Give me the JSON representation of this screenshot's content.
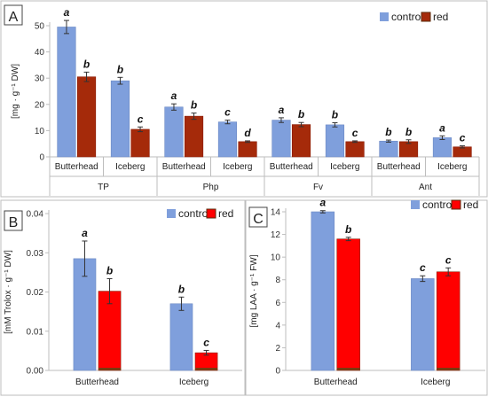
{
  "colors": {
    "control": "#7f9fdc",
    "red_A": "#a52a0a",
    "red_BC": "#ff0000",
    "red_base": "#7a3a10",
    "error": "#333333",
    "axis": "#bdbdbd"
  },
  "chart_data": [
    {
      "type": "bar",
      "panel_label": "A",
      "ylabel": "[mg · g⁻¹ DW]",
      "ylim": [
        0,
        50
      ],
      "yticks": [
        0,
        10,
        20,
        30,
        40,
        50
      ],
      "groups": [
        "TP",
        "Php",
        "Fv",
        "Ant"
      ],
      "categories": [
        "Butterhead",
        "Iceberg",
        "Butterhead",
        "Iceberg",
        "Butterhead",
        "Iceberg",
        "Butterhead",
        "Iceberg"
      ],
      "legend_position": "top-right",
      "series": [
        {
          "name": "control",
          "values": [
            49.5,
            29.0,
            19.0,
            13.3,
            14.0,
            12.2,
            6.0,
            7.3
          ],
          "errors": [
            2.5,
            1.3,
            1.2,
            0.7,
            0.9,
            0.8,
            0.4,
            0.7
          ],
          "labels": [
            "a",
            "b",
            "a",
            "c",
            "a",
            "b",
            "b",
            "a"
          ]
        },
        {
          "name": "red",
          "values": [
            30.5,
            10.5,
            15.5,
            5.8,
            12.3,
            5.8,
            5.8,
            3.8
          ],
          "errors": [
            1.8,
            0.9,
            1.2,
            0.3,
            0.8,
            0.3,
            0.7,
            0.4
          ],
          "labels": [
            "b",
            "c",
            "b",
            "d",
            "b",
            "c",
            "b",
            "c"
          ]
        }
      ]
    },
    {
      "type": "bar",
      "panel_label": "B",
      "ylabel": "[mM Trolox · g⁻¹ DW]",
      "ylim": [
        0,
        0.04
      ],
      "yticks": [
        "0.00",
        "0.01",
        "0.02",
        "0.03",
        "0.04"
      ],
      "categories": [
        "Butterhead",
        "Iceberg"
      ],
      "legend_position": "top-right",
      "series": [
        {
          "name": "control",
          "values": [
            0.0285,
            0.017
          ],
          "errors": [
            0.0045,
            0.0017
          ],
          "labels": [
            "a",
            "b"
          ]
        },
        {
          "name": "red",
          "values": [
            0.0202,
            0.0045
          ],
          "errors": [
            0.0032,
            0.0006
          ],
          "labels": [
            "b",
            "c"
          ]
        }
      ]
    },
    {
      "type": "bar",
      "panel_label": "C",
      "ylabel": "[mg LAA · g⁻¹ FW]",
      "ylim": [
        0,
        14
      ],
      "yticks": [
        0,
        2,
        4,
        6,
        8,
        10,
        12,
        14
      ],
      "categories": [
        "Butterhead",
        "Iceberg"
      ],
      "legend_position": "top-right",
      "series": [
        {
          "name": "control",
          "values": [
            14.0,
            8.1
          ],
          "errors": [
            0.1,
            0.25
          ],
          "labels": [
            "a",
            "c"
          ]
        },
        {
          "name": "red",
          "values": [
            11.6,
            8.7
          ],
          "errors": [
            0.15,
            0.35
          ],
          "labels": [
            "b",
            "c"
          ]
        }
      ]
    }
  ]
}
